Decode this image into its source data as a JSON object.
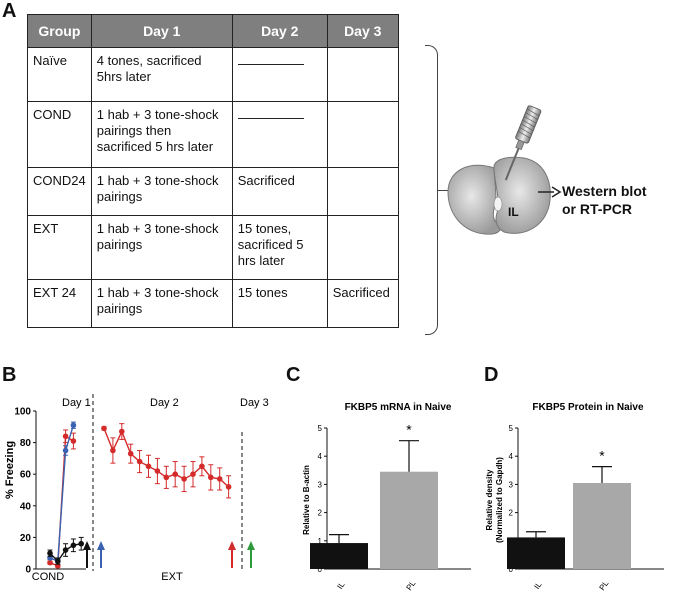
{
  "panels": {
    "a": "A",
    "b": "B",
    "c": "C",
    "d": "D"
  },
  "table": {
    "headers": [
      "Group",
      "Day 1",
      "Day 2",
      "Day 3"
    ],
    "rows": [
      {
        "group": "Naïve",
        "day1": "4 tones, sacrificed 5hrs later",
        "day2": "",
        "day2_blank": true,
        "day3": ""
      },
      {
        "group": "COND",
        "day1": "1 hab + 3 tone-shock pairings  then sacrificed 5 hrs later",
        "day2": "",
        "day2_blank": true,
        "day3": ""
      },
      {
        "group": "COND24",
        "day1": "1 hab + 3 tone-shock pairings",
        "day2": "Sacrificed",
        "day2_blank": false,
        "day3": ""
      },
      {
        "group": "EXT",
        "day1": "1 hab + 3 tone-shock pairings",
        "day2": "15 tones, sacrificed 5 hrs later",
        "day2_blank": false,
        "day3": ""
      },
      {
        "group": "EXT 24",
        "day1": "1 hab + 3 tone-shock pairings",
        "day2": "15 tones",
        "day2_blank": false,
        "day3": "Sacrificed"
      }
    ]
  },
  "brain": {
    "region_label": "IL",
    "output_label_line1": "Western blot",
    "output_label_line2": "or RT-PCR"
  },
  "colors": {
    "red": "#d42a2a",
    "blue": "#3a62b0",
    "black": "#111111",
    "gray_bar": "#a8a8a9",
    "green": "#2e9a3c",
    "header_gray": "#7f7f7f"
  },
  "chart_data": [
    {
      "id": "B",
      "type": "line",
      "title": "",
      "ylabel": "% Freezing",
      "ylim": [
        0,
        100
      ],
      "yticks": [
        "0",
        "20",
        "40",
        "60",
        "80",
        "100"
      ],
      "session_labels": [
        "Day 1",
        "Day 2",
        "Day 3"
      ],
      "phase_labels": [
        "COND",
        "EXT"
      ],
      "series": [
        {
          "name": "COND24-red",
          "color": "#d42a2a",
          "x": [
            1,
            2,
            3,
            4
          ],
          "values": [
            4,
            2,
            84,
            81
          ],
          "errors": [
            1,
            1,
            4,
            5
          ]
        },
        {
          "name": "COND-blue",
          "color": "#3a62b0",
          "x": [
            1,
            2,
            3,
            4
          ],
          "values": [
            7,
            5,
            75,
            91
          ],
          "errors": [
            1,
            1,
            3,
            2
          ]
        },
        {
          "name": "Naive-black",
          "color": "#111111",
          "x": [
            1,
            2,
            3,
            4,
            5
          ],
          "values": [
            10,
            5,
            12,
            15,
            16
          ],
          "errors": [
            2,
            2,
            4,
            4,
            4
          ]
        },
        {
          "name": "EXT-red",
          "color": "#d42a2a",
          "x": [
            1,
            2,
            3,
            4,
            5,
            6,
            7,
            8,
            9,
            10,
            11,
            12,
            13,
            14,
            15
          ],
          "values": [
            89,
            75,
            87,
            73,
            68,
            65,
            62,
            58,
            60,
            57,
            60,
            65,
            58,
            57,
            52
          ],
          "errors": [
            1,
            8,
            5,
            6,
            7,
            7,
            8,
            7,
            8,
            8,
            8,
            6,
            8,
            7,
            7
          ]
        }
      ],
      "arrows": [
        {
          "phase": "COND",
          "color": "#111111"
        },
        {
          "phase": "COND",
          "color": "#3a62b0"
        },
        {
          "phase": "EXT",
          "color": "#d42a2a"
        },
        {
          "phase": "EXT",
          "color": "#2e9a3c"
        }
      ]
    },
    {
      "id": "C",
      "type": "bar",
      "title": "FKBP5 mRNA in Naive",
      "ylabel": "Relative to B-actin",
      "ylim": [
        0,
        5
      ],
      "yticks": [
        "0",
        "1",
        "2",
        "3",
        "4",
        "5"
      ],
      "categories": [
        "IL",
        "PL"
      ],
      "values": [
        0.92,
        3.45
      ],
      "errors": [
        0.3,
        1.1
      ],
      "bar_colors": [
        "#111111",
        "#a8a8a9"
      ],
      "annotation": "*"
    },
    {
      "id": "D",
      "type": "bar",
      "title": "FKBP5 Protein in Naive",
      "ylabel": "Relative density",
      "ylabel2": "(Normalized to Gapdh)",
      "ylim": [
        0,
        5
      ],
      "yticks": [
        "0",
        "1",
        "2",
        "3",
        "4",
        "5"
      ],
      "categories": [
        "IL",
        "PL"
      ],
      "values": [
        1.12,
        3.05
      ],
      "errors": [
        0.2,
        0.58
      ],
      "bar_colors": [
        "#111111",
        "#a8a8a9"
      ],
      "annotation": "*"
    }
  ]
}
